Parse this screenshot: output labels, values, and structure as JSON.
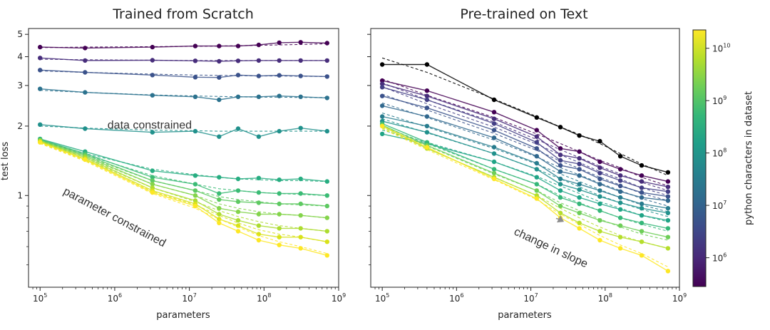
{
  "colors": {
    "viridis": [
      "#440154",
      "#482878",
      "#3e4989",
      "#31688e",
      "#26828e",
      "#1f9e89",
      "#35b779",
      "#6ece58",
      "#b5de2b",
      "#fde725"
    ],
    "ink": "#222222",
    "annotation_arrow": "#8c8c8c"
  },
  "colorbar": {
    "label": "python characters in dataset",
    "log_min": 5.45,
    "log_max": 10.35,
    "ticks": [
      {
        "log": 6,
        "base": "10",
        "exp": "6"
      },
      {
        "log": 7,
        "base": "10",
        "exp": "7"
      },
      {
        "log": 8,
        "base": "10",
        "exp": "8"
      },
      {
        "log": 9,
        "base": "10",
        "exp": "9"
      },
      {
        "log": 10,
        "base": "10",
        "exp": "10"
      }
    ]
  },
  "chart_data": [
    {
      "type": "line",
      "title": "Trained from Scratch",
      "xlabel": "parameters",
      "ylabel": "test loss",
      "xscale": "log",
      "yscale": "log",
      "xlim": [
        70000,
        1000000000
      ],
      "ylim": [
        0.4,
        5.3
      ],
      "xticks": [
        {
          "value": 100000,
          "base": "10",
          "exp": "5"
        },
        {
          "value": 1000000,
          "base": "10",
          "exp": "6"
        },
        {
          "value": 10000000,
          "base": "10",
          "exp": "7"
        },
        {
          "value": 100000000,
          "base": "10",
          "exp": "8"
        },
        {
          "value": 1000000000,
          "base": "10",
          "exp": "9"
        }
      ],
      "yticks": [
        {
          "value": 1,
          "label": "1"
        },
        {
          "value": 2,
          "label": "2"
        },
        {
          "value": 3,
          "label": "3"
        },
        {
          "value": 4,
          "label": "4"
        },
        {
          "value": 5,
          "label": "5"
        }
      ],
      "annotations": [
        {
          "text": "data constrained",
          "x": 800000,
          "y": 1.95,
          "rotate": 0
        },
        {
          "text": "parameter constrained",
          "x": 200000,
          "y": 1.02,
          "rotate": 28
        }
      ],
      "x": [
        100000,
        400000,
        3200000,
        12000000,
        25000000,
        45000000,
        85000000,
        160000000,
        310000000,
        700000000
      ],
      "series": [
        {
          "color": "#440154",
          "values": [
            4.4,
            4.36,
            4.4,
            4.45,
            4.45,
            4.45,
            4.5,
            4.6,
            4.62,
            4.58
          ],
          "fit": [
            4.38,
            4.4,
            4.42,
            4.44,
            4.45,
            4.46,
            4.48,
            4.5,
            4.52,
            4.55
          ]
        },
        {
          "color": "#472d7b",
          "values": [
            3.95,
            3.85,
            3.86,
            3.84,
            3.82,
            3.84,
            3.85,
            3.85,
            3.85,
            3.85
          ],
          "fit": [
            3.9,
            3.88,
            3.86,
            3.85,
            3.85,
            3.85,
            3.85,
            3.85,
            3.85,
            3.85
          ]
        },
        {
          "color": "#3b528b",
          "values": [
            3.5,
            3.42,
            3.33,
            3.26,
            3.25,
            3.33,
            3.3,
            3.32,
            3.3,
            3.28
          ],
          "fit": [
            3.47,
            3.42,
            3.36,
            3.33,
            3.32,
            3.31,
            3.3,
            3.3,
            3.29,
            3.28
          ]
        },
        {
          "color": "#2c728e",
          "values": [
            2.9,
            2.8,
            2.72,
            2.68,
            2.6,
            2.68,
            2.68,
            2.7,
            2.68,
            2.65
          ],
          "fit": [
            2.86,
            2.8,
            2.73,
            2.7,
            2.69,
            2.68,
            2.67,
            2.67,
            2.66,
            2.66
          ]
        },
        {
          "color": "#21918c",
          "values": [
            2.03,
            1.95,
            1.88,
            1.9,
            1.8,
            1.95,
            1.8,
            1.9,
            1.96,
            1.9
          ],
          "fit": [
            2.0,
            1.96,
            1.92,
            1.91,
            1.9,
            1.9,
            1.9,
            1.9,
            1.9,
            1.9
          ]
        },
        {
          "color": "#27ad81",
          "values": [
            1.76,
            1.55,
            1.28,
            1.22,
            1.2,
            1.18,
            1.19,
            1.17,
            1.18,
            1.15
          ],
          "fit": [
            1.74,
            1.52,
            1.3,
            1.23,
            1.2,
            1.18,
            1.17,
            1.16,
            1.16,
            1.15
          ]
        },
        {
          "color": "#3bbb75",
          "values": [
            1.75,
            1.52,
            1.2,
            1.12,
            1.02,
            1.05,
            1.03,
            1.02,
            1.02,
            1.0
          ],
          "fit": [
            1.73,
            1.5,
            1.22,
            1.12,
            1.07,
            1.05,
            1.03,
            1.02,
            1.01,
            1.0
          ]
        },
        {
          "color": "#5ec962",
          "values": [
            1.74,
            1.5,
            1.16,
            1.05,
            0.96,
            0.94,
            0.93,
            0.92,
            0.92,
            0.9
          ],
          "fit": [
            1.72,
            1.48,
            1.16,
            1.05,
            0.99,
            0.96,
            0.94,
            0.92,
            0.91,
            0.9
          ]
        },
        {
          "color": "#84d44b",
          "values": [
            1.73,
            1.48,
            1.12,
            1.0,
            0.88,
            0.85,
            0.83,
            0.83,
            0.82,
            0.8
          ],
          "fit": [
            1.71,
            1.46,
            1.12,
            1.0,
            0.92,
            0.88,
            0.85,
            0.83,
            0.82,
            0.8
          ]
        },
        {
          "color": "#addc30",
          "values": [
            1.72,
            1.46,
            1.08,
            0.95,
            0.83,
            0.78,
            0.74,
            0.72,
            0.72,
            0.7
          ],
          "fit": [
            1.7,
            1.44,
            1.08,
            0.94,
            0.86,
            0.81,
            0.77,
            0.74,
            0.72,
            0.7
          ]
        },
        {
          "color": "#d8e219",
          "values": [
            1.71,
            1.44,
            1.05,
            0.92,
            0.79,
            0.74,
            0.68,
            0.66,
            0.66,
            0.63
          ],
          "fit": [
            1.69,
            1.42,
            1.04,
            0.91,
            0.82,
            0.76,
            0.71,
            0.68,
            0.66,
            0.63
          ]
        },
        {
          "color": "#fde725",
          "values": [
            1.7,
            1.43,
            1.03,
            0.9,
            0.76,
            0.7,
            0.64,
            0.61,
            0.59,
            0.55
          ],
          "fit": [
            1.68,
            1.41,
            1.02,
            0.88,
            0.79,
            0.73,
            0.67,
            0.63,
            0.6,
            0.56
          ]
        }
      ]
    },
    {
      "type": "line",
      "title": "Pre-trained on Text",
      "xlabel": "parameters",
      "xscale": "log",
      "yscale": "log",
      "xlim": [
        70000,
        1000000000
      ],
      "ylim": [
        0.4,
        5.3
      ],
      "xticks": [
        {
          "value": 100000,
          "base": "10",
          "exp": "5"
        },
        {
          "value": 1000000,
          "base": "10",
          "exp": "6"
        },
        {
          "value": 10000000,
          "base": "10",
          "exp": "7"
        },
        {
          "value": 100000000,
          "base": "10",
          "exp": "8"
        },
        {
          "value": 1000000000,
          "base": "10",
          "exp": "9"
        }
      ],
      "annotations": [
        {
          "text": "change in slope",
          "x": 5800000,
          "y": 0.68,
          "rotate": 25,
          "arrow_to": [
            25000000,
            0.82
          ]
        }
      ],
      "x": [
        100000,
        400000,
        3200000,
        12000000,
        25000000,
        45000000,
        85000000,
        160000000,
        310000000,
        700000000
      ],
      "series": [
        {
          "color": "#000000",
          "values": [
            3.7,
            3.7,
            2.6,
            2.18,
            1.98,
            1.82,
            1.72,
            1.48,
            1.35,
            1.26
          ],
          "fit": [
            3.95,
            3.42,
            2.62,
            2.2,
            1.98,
            1.84,
            1.68,
            1.52,
            1.37,
            1.22
          ]
        },
        {
          "color": "#440154",
          "values": [
            3.15,
            2.85,
            2.3,
            1.92,
            1.6,
            1.55,
            1.4,
            1.3,
            1.22,
            1.15
          ],
          "fit": [
            3.2,
            2.72,
            2.18,
            1.85,
            1.68,
            1.55,
            1.42,
            1.32,
            1.2,
            1.1
          ]
        },
        {
          "color": "#472d7b",
          "values": [
            3.05,
            2.7,
            2.15,
            1.8,
            1.5,
            1.45,
            1.32,
            1.22,
            1.15,
            1.09
          ],
          "fit": [
            3.08,
            2.6,
            2.08,
            1.75,
            1.58,
            1.46,
            1.34,
            1.24,
            1.14,
            1.05
          ]
        },
        {
          "color": "#433e85",
          "values": [
            2.95,
            2.6,
            2.05,
            1.7,
            1.42,
            1.37,
            1.25,
            1.16,
            1.08,
            1.04
          ],
          "fit": [
            2.96,
            2.5,
            1.98,
            1.67,
            1.5,
            1.39,
            1.27,
            1.18,
            1.08,
            1.0
          ]
        },
        {
          "color": "#3b528b",
          "values": [
            2.7,
            2.4,
            1.92,
            1.6,
            1.35,
            1.3,
            1.18,
            1.1,
            1.03,
            0.99
          ],
          "fit": [
            2.75,
            2.35,
            1.86,
            1.57,
            1.41,
            1.31,
            1.2,
            1.11,
            1.02,
            0.95
          ]
        },
        {
          "color": "#31688e",
          "values": [
            2.45,
            2.2,
            1.78,
            1.48,
            1.27,
            1.22,
            1.12,
            1.04,
            0.98,
            0.95
          ],
          "fit": [
            2.52,
            2.18,
            1.74,
            1.47,
            1.32,
            1.23,
            1.13,
            1.05,
            0.97,
            0.9
          ]
        },
        {
          "color": "#287c8e",
          "values": [
            2.2,
            2.0,
            1.62,
            1.38,
            1.18,
            1.12,
            1.05,
            0.98,
            0.92,
            0.88
          ],
          "fit": [
            2.28,
            1.98,
            1.6,
            1.37,
            1.24,
            1.15,
            1.06,
            0.98,
            0.91,
            0.85
          ]
        },
        {
          "color": "#21918c",
          "values": [
            2.1,
            1.88,
            1.52,
            1.3,
            1.12,
            1.06,
            0.99,
            0.93,
            0.88,
            0.84
          ],
          "fit": [
            2.15,
            1.87,
            1.52,
            1.3,
            1.18,
            1.09,
            1.0,
            0.93,
            0.87,
            0.81
          ]
        },
        {
          "color": "#20a486",
          "values": [
            1.85,
            1.68,
            1.4,
            1.2,
            1.05,
            0.98,
            0.92,
            0.87,
            0.82,
            0.78
          ],
          "fit": [
            1.92,
            1.7,
            1.4,
            1.21,
            1.1,
            1.02,
            0.94,
            0.88,
            0.82,
            0.77
          ]
        },
        {
          "color": "#35b779",
          "values": [
            2.05,
            1.7,
            1.3,
            1.12,
            0.98,
            0.92,
            0.86,
            0.8,
            0.76,
            0.72
          ],
          "fit": [
            2.0,
            1.68,
            1.3,
            1.12,
            1.0,
            0.93,
            0.86,
            0.8,
            0.75,
            0.7
          ]
        },
        {
          "color": "#6ece58",
          "values": [
            2.02,
            1.65,
            1.25,
            1.05,
            0.9,
            0.84,
            0.78,
            0.74,
            0.7,
            0.66
          ],
          "fit": [
            1.98,
            1.64,
            1.24,
            1.05,
            0.93,
            0.86,
            0.79,
            0.73,
            0.68,
            0.64
          ]
        },
        {
          "color": "#b5de2b",
          "values": [
            2.0,
            1.6,
            1.2,
            1.0,
            0.84,
            0.76,
            0.7,
            0.66,
            0.63,
            0.59
          ],
          "fit": [
            1.96,
            1.6,
            1.2,
            1.0,
            0.88,
            0.8,
            0.73,
            0.67,
            0.63,
            0.59
          ]
        },
        {
          "color": "#fde725",
          "values": [
            2.0,
            1.62,
            1.18,
            0.97,
            0.8,
            0.72,
            0.64,
            0.59,
            0.55,
            0.47
          ],
          "fit": [
            1.95,
            1.58,
            1.17,
            0.96,
            0.83,
            0.75,
            0.67,
            0.61,
            0.56,
            0.49
          ]
        }
      ]
    }
  ]
}
